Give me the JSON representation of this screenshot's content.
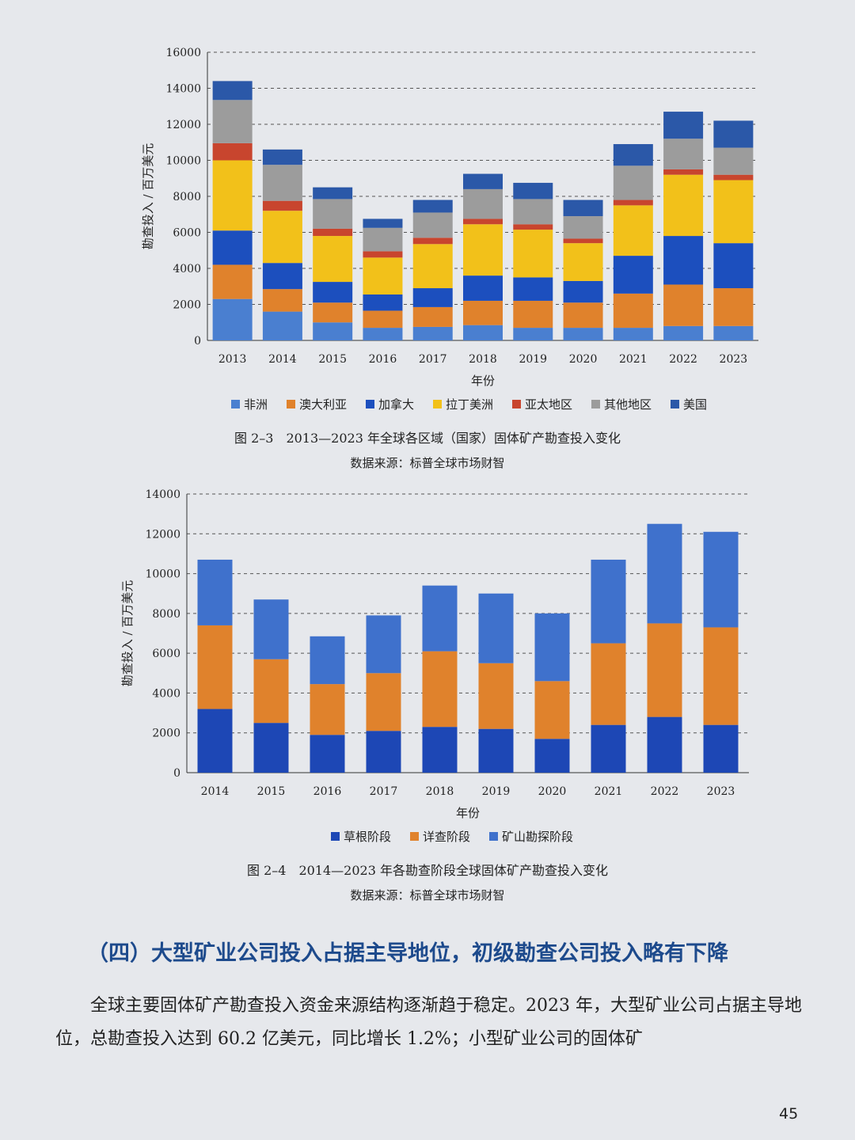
{
  "chart_data": [
    {
      "type": "bar",
      "stacked": true,
      "categories": [
        "2013",
        "2014",
        "2015",
        "2016",
        "2017",
        "2018",
        "2019",
        "2020",
        "2021",
        "2022",
        "2023"
      ],
      "xlabel": "年份",
      "ylabel": "勘查投入 / 百万美元",
      "ylim": [
        0,
        16000
      ],
      "yticks": [
        0,
        2000,
        4000,
        6000,
        8000,
        10000,
        12000,
        14000,
        16000
      ],
      "grid": "horizontal-dashed",
      "legend_position": "bottom",
      "series": [
        {
          "name": "非洲",
          "color": "#4a7fd0",
          "values": [
            2300,
            1600,
            1000,
            700,
            750,
            850,
            700,
            700,
            700,
            800,
            800
          ]
        },
        {
          "name": "澳大利亚",
          "color": "#e0822c",
          "values": [
            1900,
            1250,
            1100,
            950,
            1100,
            1350,
            1500,
            1400,
            1900,
            2300,
            2100
          ]
        },
        {
          "name": "加拿大",
          "color": "#1c4fbe",
          "values": [
            1900,
            1450,
            1150,
            900,
            1050,
            1400,
            1300,
            1200,
            2100,
            2700,
            2500
          ]
        },
        {
          "name": "拉丁美洲",
          "color": "#f2c11a",
          "values": [
            3900,
            2900,
            2550,
            2050,
            2450,
            2850,
            2650,
            2100,
            2800,
            3400,
            3500
          ]
        },
        {
          "name": "亚太地区",
          "color": "#c8452e",
          "values": [
            950,
            550,
            400,
            350,
            350,
            300,
            300,
            250,
            300,
            300,
            300
          ]
        },
        {
          "name": "其他地区",
          "color": "#9c9c9c",
          "values": [
            2400,
            2000,
            1650,
            1300,
            1400,
            1650,
            1400,
            1250,
            1900,
            1700,
            1500
          ]
        },
        {
          "name": "美国",
          "color": "#2b58a8",
          "values": [
            1050,
            850,
            650,
            500,
            700,
            850,
            900,
            900,
            1200,
            1500,
            1500
          ]
        }
      ]
    },
    {
      "type": "bar",
      "stacked": true,
      "categories": [
        "2014",
        "2015",
        "2016",
        "2017",
        "2018",
        "2019",
        "2020",
        "2021",
        "2022",
        "2023"
      ],
      "xlabel": "年份",
      "ylabel": "勘查投入 / 百万美元",
      "ylim": [
        0,
        14000
      ],
      "yticks": [
        0,
        2000,
        4000,
        6000,
        8000,
        10000,
        12000,
        14000
      ],
      "grid": "horizontal-dashed",
      "legend_position": "bottom",
      "series": [
        {
          "name": "草根阶段",
          "color": "#1d47b5",
          "values": [
            3200,
            2500,
            1900,
            2100,
            2300,
            2200,
            1700,
            2400,
            2800,
            2400
          ]
        },
        {
          "name": "详查阶段",
          "color": "#e0822c",
          "values": [
            4200,
            3200,
            2550,
            2900,
            3800,
            3300,
            2900,
            4100,
            4700,
            4900
          ]
        },
        {
          "name": "矿山勘探阶段",
          "color": "#3f71cc",
          "values": [
            3300,
            3000,
            2400,
            2900,
            3300,
            3500,
            3400,
            4200,
            5000,
            4800
          ]
        }
      ]
    }
  ],
  "figures": {
    "fig1_caption": "图 2–3　2013—2023 年全球各区域（国家）固体矿产勘查投入变化",
    "fig1_source": "数据来源：标普全球市场财智",
    "fig2_caption": "图 2–4　2014—2023 年各勘查阶段全球固体矿产勘查投入变化",
    "fig2_source": "数据来源：标普全球市场财智"
  },
  "section": {
    "heading": "（四）大型矿业公司投入占据主导地位，初级勘查公司投入略有下降",
    "paragraph": "全球主要固体矿产勘查投入资金来源结构逐渐趋于稳定。2023 年，大型矿业公司占据主导地位，总勘查投入达到 60.2 亿美元，同比增长 1.2%；小型矿业公司的固体矿"
  },
  "page_number": "45"
}
